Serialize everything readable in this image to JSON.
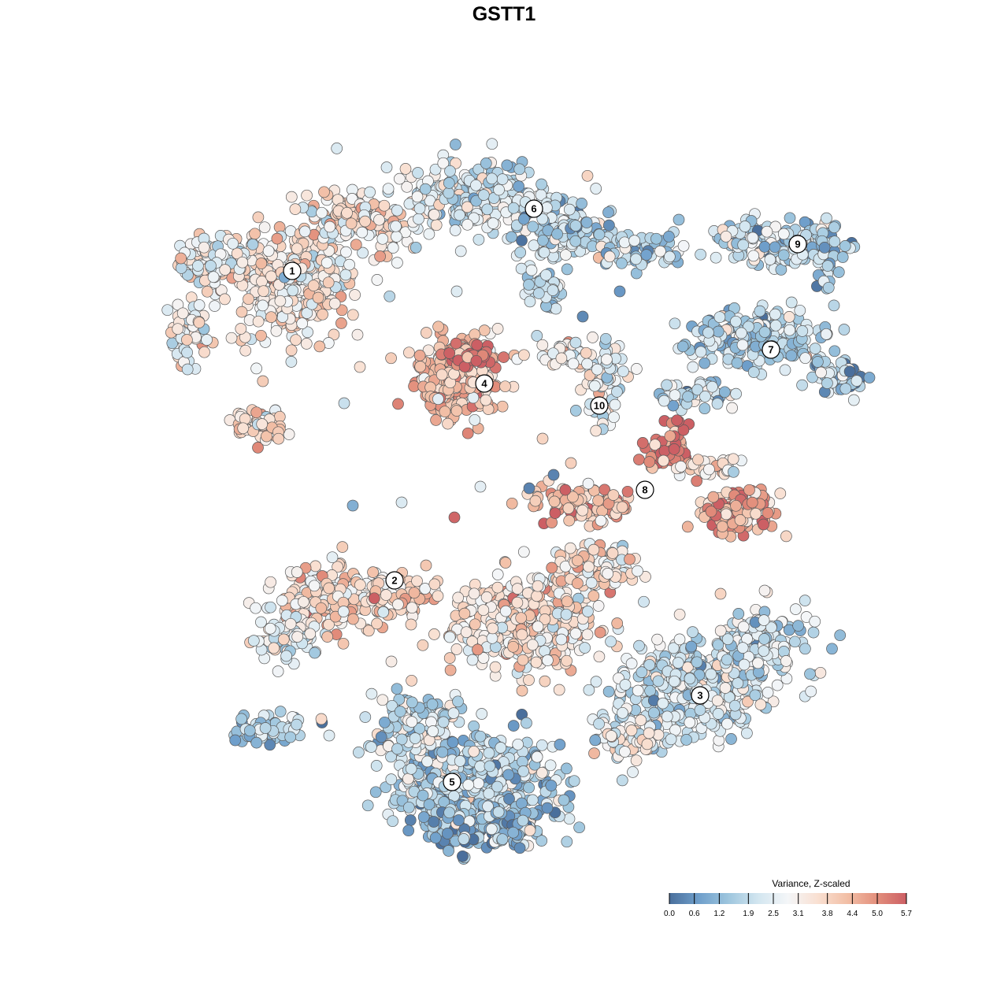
{
  "chart_data": {
    "type": "scatter",
    "title": "GSTT1",
    "xlabel": "",
    "ylabel": "",
    "color_scale": {
      "label": "Variance, Z-scaled",
      "min": 0.0,
      "max": 5.7,
      "ticks": [
        "0.0",
        "0.6",
        "1.2",
        "1.9",
        "2.5",
        "3.1",
        "3.8",
        "4.4",
        "5.0",
        "5.7"
      ],
      "colors": [
        "#4a6f9c",
        "#6f9fcb",
        "#9ec6de",
        "#d3e6f0",
        "#f4f6f8",
        "#f9e0d2",
        "#f2bfa6",
        "#e38f7c",
        "#cc5f64"
      ]
    },
    "clusters": [
      {
        "id": "1",
        "mean_value": 3.4
      },
      {
        "id": "2",
        "mean_value": 3.6
      },
      {
        "id": "3",
        "mean_value": 2.2
      },
      {
        "id": "4",
        "mean_value": 4.2
      },
      {
        "id": "5",
        "mean_value": 1.7
      },
      {
        "id": "6",
        "mean_value": 2.4
      },
      {
        "id": "7",
        "mean_value": 1.8
      },
      {
        "id": "8",
        "mean_value": 4.3
      },
      {
        "id": "9",
        "mean_value": 1.9
      },
      {
        "id": "10",
        "mean_value": 2.8
      }
    ],
    "grid": false,
    "legend_position": "bottom-right"
  }
}
